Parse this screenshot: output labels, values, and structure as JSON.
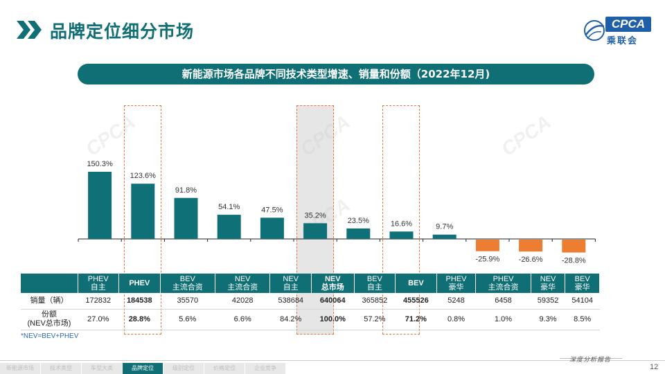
{
  "header": {
    "title": "品牌定位细分市场",
    "logo_text": "CPCA",
    "logo_sub": "乘联会"
  },
  "banner": "新能源市场各品牌不同技术类型增速、销量和份额（2022年12月)",
  "colors": {
    "positive": "#0f7077",
    "negative": "#ed7d31",
    "highlight": "#e8743b"
  },
  "chart_data": {
    "type": "bar",
    "title": "新能源市场各品牌不同技术类型增速、销量和份额（2022年12月)",
    "categories": [
      "PHEV 自主",
      "PHEV",
      "BEV 主流合资",
      "NEV 主流合资",
      "NEV 自主",
      "NEV 总市场",
      "BEV 自主",
      "BEV",
      "PHEV 豪华",
      "PHEV 主流合资",
      "NEV 豪华",
      "BEV 豪华"
    ],
    "values": [
      150.3,
      123.6,
      91.8,
      54.1,
      47.5,
      35.2,
      23.5,
      16.6,
      9.7,
      -25.9,
      -26.6,
      -28.8
    ],
    "labels": [
      "150.3%",
      "123.6%",
      "91.8%",
      "54.1%",
      "47.5%",
      "35.2%",
      "23.5%",
      "16.6%",
      "9.7%",
      "-25.9%",
      "-26.6%",
      "-28.8%"
    ],
    "unit": "%",
    "highlighted": [
      1,
      5,
      7
    ]
  },
  "table": {
    "columns": [
      [
        "PHEV",
        "自主"
      ],
      [
        "PHEV"
      ],
      [
        "BEV",
        "主流合资"
      ],
      [
        "NEV",
        "主流合资"
      ],
      [
        "NEV",
        "自主"
      ],
      [
        "NEV",
        "总市场"
      ],
      [
        "BEV",
        "自主"
      ],
      [
        "BEV"
      ],
      [
        "PHEV",
        "豪华"
      ],
      [
        "PHEV",
        "主流合资"
      ],
      [
        "NEV",
        "豪华"
      ],
      [
        "BEV",
        "豪华"
      ]
    ],
    "rows": [
      {
        "label": [
          "销量（辆）"
        ],
        "cells": [
          "172832",
          "184538",
          "35570",
          "42028",
          "538684",
          "640064",
          "365852",
          "455526",
          "5248",
          "6458",
          "59352",
          "54104"
        ]
      },
      {
        "label": [
          "份额",
          "(NEV总市场)"
        ],
        "cells": [
          "27.0%",
          "28.8%",
          "5.6%",
          "6.6%",
          "84.2%",
          "100.0%",
          "57.2%",
          "71.2%",
          "0.8%",
          "1.0%",
          "9.3%",
          "8.5%"
        ]
      }
    ]
  },
  "footnote": "*NEV=BEV+PHEV",
  "footer": {
    "tag": "深度分析报告",
    "page": "12",
    "nav": [
      "新能源市场",
      "技术类型",
      "车型大类",
      "品牌定位",
      "级别定位",
      "价格定位",
      "企业竞争"
    ],
    "active_index": 3
  }
}
